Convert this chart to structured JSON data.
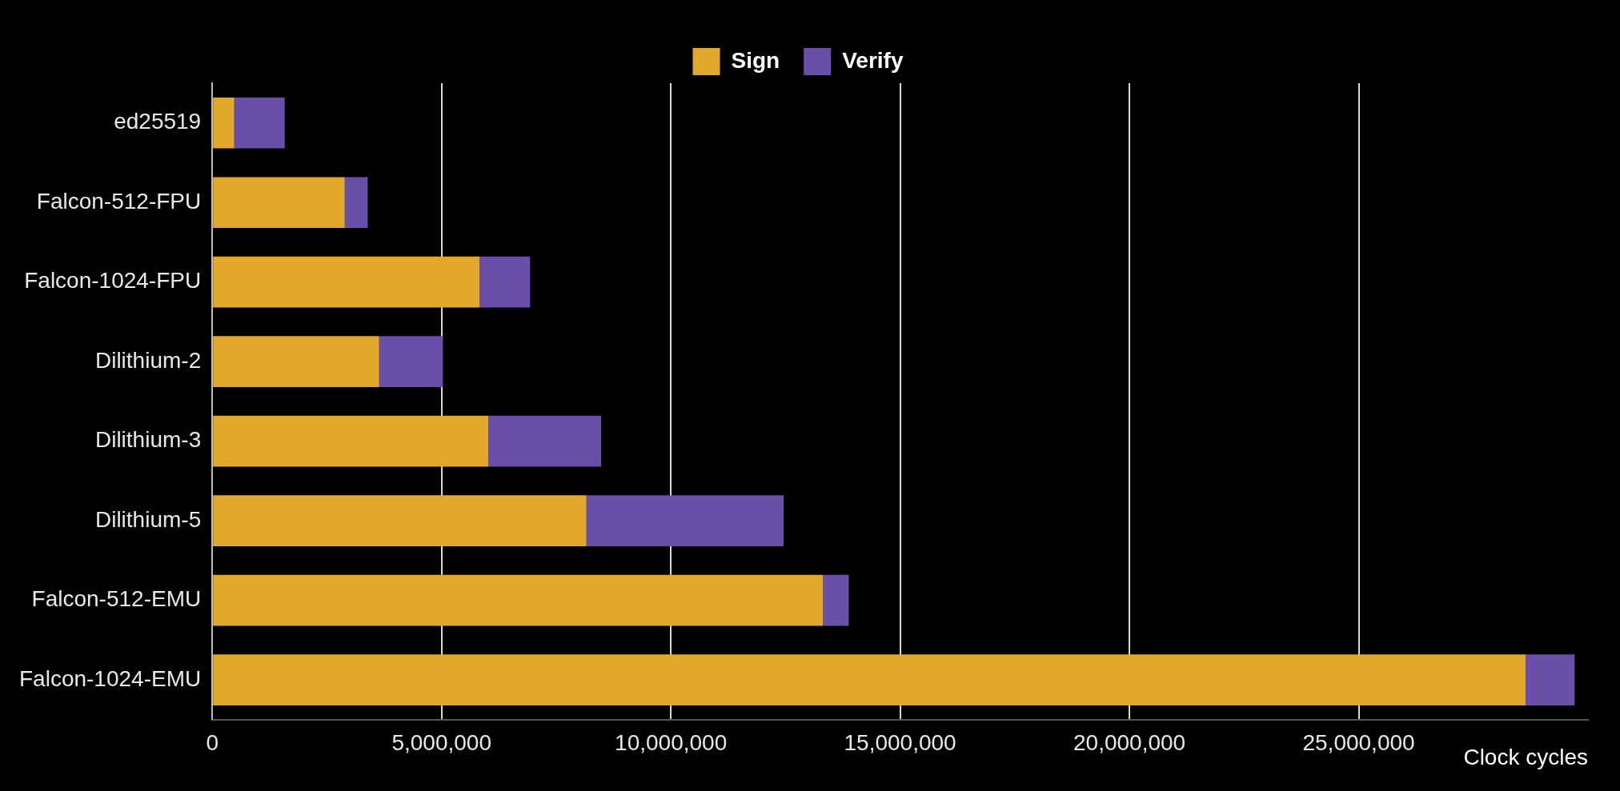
{
  "chart_data": {
    "type": "bar",
    "orientation": "horizontal",
    "stacked": true,
    "xlabel": "Clock cycles",
    "categories": [
      "ed25519",
      "Falcon-512-FPU",
      "Falcon-1024-FPU",
      "Dilithium-2",
      "Dilithium-3",
      "Dilithium-5",
      "Falcon-512-EMU",
      "Falcon-1024-EMU"
    ],
    "series": [
      {
        "name": "Sign",
        "color": "#e1a82c",
        "values": [
          480000,
          2890000,
          5830000,
          3640000,
          6020000,
          8160000,
          13320000,
          28640000
        ]
      },
      {
        "name": "Verify",
        "color": "#6a4fa9",
        "values": [
          1100000,
          500000,
          1100000,
          1390000,
          2460000,
          4300000,
          560000,
          1070000
        ]
      }
    ],
    "xlim": [
      0,
      30000000
    ],
    "xticks": [
      0,
      {
        "value": 5000000,
        "label": "5,000,000"
      },
      {
        "value": 10000000,
        "label": "10,000,000"
      },
      {
        "value": 15000000,
        "label": "15,000,000"
      },
      {
        "value": 20000000,
        "label": "20,000,000"
      },
      {
        "value": 25000000,
        "label": "25,000,000"
      }
    ],
    "grid": "x",
    "legend": "top"
  }
}
